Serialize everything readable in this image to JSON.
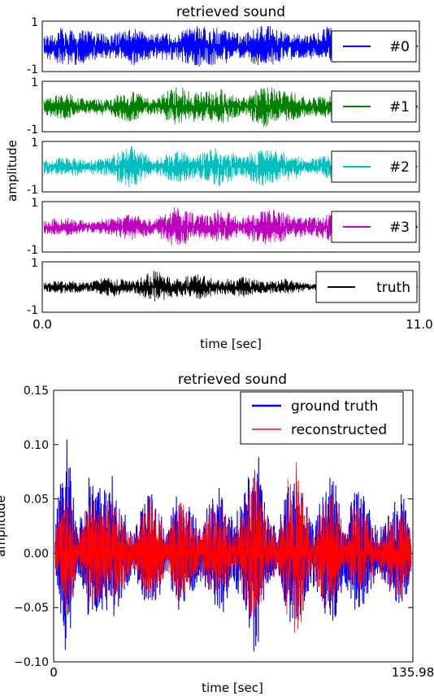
{
  "chart_data": [
    {
      "type": "line",
      "title": "retrieved sound",
      "xlabel": "time [sec]",
      "ylabel": "amplitude",
      "xlim": [
        0.0,
        11.0
      ],
      "x_tick_labels": [
        "0.0",
        "11.0"
      ],
      "panels": [
        {
          "series": "#0",
          "color": "#0000ff",
          "ylim": [
            -1,
            1
          ],
          "y_tick_labels": [
            "1",
            "-1"
          ],
          "legend": "right",
          "peak_envelope": [
            0.45,
            0.9,
            0.7,
            0.5,
            0.85,
            0.55,
            0.6,
            0.9,
            0.8,
            0.5,
            0.95,
            0.6,
            0.5,
            0.9,
            0.4,
            0.2,
            0.1,
            0.05
          ]
        },
        {
          "series": "#1",
          "color": "#007f00",
          "ylim": [
            -1,
            1
          ],
          "y_tick_labels": [
            "1",
            "-1"
          ],
          "legend": "right",
          "peak_envelope": [
            0.35,
            0.6,
            0.3,
            0.4,
            0.7,
            0.3,
            0.9,
            0.6,
            0.8,
            0.4,
            0.9,
            0.7,
            0.4,
            0.5,
            0.6,
            0.3,
            0.1,
            0.05
          ]
        },
        {
          "series": "#2",
          "color": "#00bfbf",
          "ylim": [
            -1,
            1
          ],
          "y_tick_labels": [
            "1",
            "-1"
          ],
          "legend": "right",
          "peak_envelope": [
            0.3,
            0.45,
            0.3,
            0.5,
            0.95,
            0.3,
            0.7,
            0.5,
            0.9,
            0.4,
            0.85,
            0.6,
            0.35,
            0.5,
            0.4,
            0.2,
            0.1,
            0.05
          ]
        },
        {
          "series": "#3",
          "color": "#bf00bf",
          "ylim": [
            -1,
            1
          ],
          "y_tick_labels": [
            "1",
            "-1"
          ],
          "legend": "right",
          "peak_envelope": [
            0.3,
            0.4,
            0.25,
            0.35,
            0.6,
            0.3,
            0.95,
            0.5,
            0.8,
            0.4,
            0.85,
            0.6,
            0.4,
            0.6,
            0.5,
            0.3,
            0.1,
            0.05
          ]
        },
        {
          "series": "truth",
          "color": "#000000",
          "ylim": [
            -1,
            1
          ],
          "y_tick_labels": [
            "1",
            "-1"
          ],
          "legend": "right",
          "peak_envelope": [
            0.2,
            0.3,
            0.2,
            0.45,
            0.25,
            0.7,
            0.4,
            0.55,
            0.3,
            0.45,
            0.25,
            0.35,
            0.15,
            0.1,
            0.05,
            0.05,
            0.05,
            0.05
          ]
        }
      ]
    },
    {
      "type": "line",
      "title": "retrieved sound",
      "xlabel": "time [sec]",
      "ylabel": "amplitude",
      "xlim": [
        0,
        135.98
      ],
      "ylim": [
        -0.1,
        0.15
      ],
      "x_tick_labels": [
        "0",
        "135.98"
      ],
      "y_ticks": [
        -0.1,
        -0.05,
        0.0,
        0.05,
        0.1,
        0.15
      ],
      "y_tick_labels": [
        "−0.10",
        "−0.05",
        "0.00",
        "0.05",
        "0.10",
        "0.15"
      ],
      "legend": "top-right",
      "series": [
        {
          "name": "ground truth",
          "color": "#0000ff",
          "peak_envelope": [
            0.03,
            0.11,
            0.02,
            0.07,
            0.06,
            0.075,
            0.05,
            0.02,
            0.05,
            0.065,
            0.02,
            0.06,
            0.045,
            0.03,
            0.05,
            0.065,
            0.03,
            0.055,
            0.11,
            0.04,
            0.02,
            0.08,
            0.07,
            0.03,
            0.06,
            0.075,
            0.03,
            0.06,
            0.05,
            0.02,
            0.04,
            0.06,
            0.03
          ]
        },
        {
          "name": "reconstructed",
          "color": "#ff0000",
          "peak_envelope": [
            0.02,
            0.075,
            0.015,
            0.05,
            0.055,
            0.05,
            0.04,
            0.015,
            0.045,
            0.055,
            0.015,
            0.05,
            0.04,
            0.02,
            0.045,
            0.05,
            0.02,
            0.05,
            0.08,
            0.035,
            0.015,
            0.075,
            0.09,
            0.02,
            0.05,
            0.06,
            0.02,
            0.05,
            0.04,
            0.015,
            0.035,
            0.05,
            0.02
          ]
        }
      ]
    }
  ]
}
